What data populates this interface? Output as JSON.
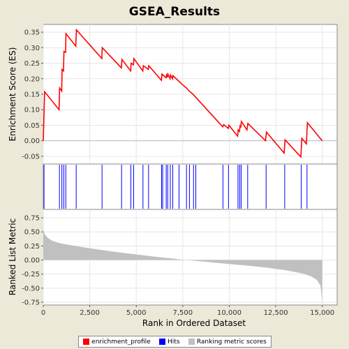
{
  "chart_data": [
    {
      "type": "line",
      "title": "GSEA_Results",
      "xlabel": "",
      "ylabel": "Enrichment Score (ES)",
      "xlim": [
        0,
        15800
      ],
      "ylim": [
        -0.075,
        0.375
      ],
      "yticks": [
        -0.05,
        0.0,
        0.05,
        0.1,
        0.15,
        0.2,
        0.25,
        0.3,
        0.35
      ],
      "ytick_labels": [
        "-0.05",
        "0.00",
        "0.05",
        "0.10",
        "0.15",
        "0.20",
        "0.25",
        "0.30",
        "0.35"
      ],
      "grid": true,
      "color": "#FF0000",
      "series": [
        {
          "name": "enrichment_profile",
          "x": [
            0,
            70,
            850,
            880,
            990,
            1010,
            1090,
            1110,
            1200,
            1220,
            1750,
            1780,
            3150,
            3170,
            4200,
            4230,
            4700,
            4720,
            4850,
            4870,
            5350,
            5380,
            5650,
            5670,
            6350,
            6380,
            6600,
            6630,
            6680,
            6700,
            6820,
            6840,
            6950,
            6970,
            7500,
            7700,
            7850,
            8050,
            8200,
            9650,
            9700,
            9950,
            9980,
            10450,
            10480,
            10550,
            10580,
            10620,
            10650,
            10950,
            11000,
            11950,
            12000,
            12950,
            13000,
            13850,
            13900,
            14150,
            14200,
            15000
          ],
          "y": [
            0.0,
            0.158,
            0.1,
            0.17,
            0.16,
            0.23,
            0.225,
            0.288,
            0.285,
            0.345,
            0.305,
            0.358,
            0.265,
            0.3,
            0.235,
            0.262,
            0.225,
            0.25,
            0.245,
            0.265,
            0.225,
            0.242,
            0.23,
            0.242,
            0.195,
            0.215,
            0.203,
            0.212,
            0.205,
            0.215,
            0.2,
            0.212,
            0.2,
            0.21,
            0.18,
            0.17,
            0.16,
            0.15,
            0.14,
            0.045,
            0.052,
            0.04,
            0.05,
            0.015,
            0.035,
            0.03,
            0.048,
            0.045,
            0.062,
            0.035,
            0.056,
            0.0,
            0.028,
            -0.04,
            0.003,
            -0.052,
            0.008,
            -0.01,
            0.058,
            0.0
          ]
        }
      ]
    },
    {
      "type": "scatter",
      "title": "",
      "xlabel": "",
      "ylabel": "",
      "xlim": [
        0,
        15800
      ],
      "color": "#0000FF",
      "series": [
        {
          "name": "Hits",
          "x": [
            40,
            870,
            1000,
            1100,
            1210,
            1770,
            3160,
            4210,
            4710,
            4860,
            5360,
            5660,
            6360,
            6420,
            6610,
            6690,
            6830,
            6960,
            7300,
            7700,
            7860,
            8080,
            8200,
            9660,
            9960,
            10470,
            10560,
            10640,
            10990,
            11980,
            12980,
            13870,
            14180
          ]
        }
      ]
    },
    {
      "type": "area",
      "title": "",
      "xlabel": "Rank in Ordered Dataset",
      "ylabel": "Ranked List Metric",
      "xlim": [
        0,
        15800
      ],
      "ylim": [
        -0.8,
        0.9
      ],
      "xticks": [
        0,
        2500,
        5000,
        7500,
        10000,
        12500,
        15000
      ],
      "xtick_labels": [
        "0",
        "2,500",
        "5,000",
        "7,500",
        "10,000",
        "12,500",
        "15,000"
      ],
      "yticks": [
        -0.75,
        -0.5,
        -0.25,
        0.0,
        0.25,
        0.5,
        0.75
      ],
      "ytick_labels": [
        "-0.75",
        "-0.50",
        "-0.25",
        "0.00",
        "0.25",
        "0.50",
        "0.75"
      ],
      "grid": true,
      "color": "#C0C0C0",
      "series": [
        {
          "name": "Ranking metric scores",
          "x": [
            0,
            30,
            100,
            250,
            500,
            800,
            1200,
            2000,
            3000,
            4000,
            5000,
            6000,
            7000,
            7600,
            8000,
            9000,
            10000,
            11000,
            12000,
            13000,
            13500,
            14000,
            14400,
            14700,
            14900,
            14960,
            15000
          ],
          "y": [
            0.58,
            0.5,
            0.45,
            0.39,
            0.34,
            0.305,
            0.28,
            0.235,
            0.185,
            0.14,
            0.1,
            0.06,
            0.025,
            0.0,
            -0.01,
            -0.04,
            -0.07,
            -0.1,
            -0.135,
            -0.18,
            -0.21,
            -0.245,
            -0.29,
            -0.35,
            -0.45,
            -0.6,
            -0.75
          ]
        }
      ]
    }
  ],
  "legend": {
    "items": [
      {
        "label": "enrichment_profile",
        "color": "#FF0000"
      },
      {
        "label": "Hits",
        "color": "#0000FF"
      },
      {
        "label": "Ranking metric scores",
        "color": "#C0C0C0"
      }
    ]
  }
}
